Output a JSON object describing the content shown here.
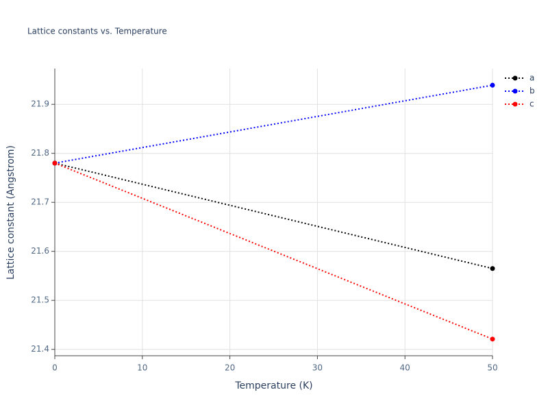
{
  "chart_data": {
    "type": "line",
    "title": "Lattice constants vs. Temperature",
    "x_label": "Temperature (K)",
    "y_label": "Lattice constant (Angstrom)",
    "x": [
      0,
      50
    ],
    "series": [
      {
        "name": "a",
        "color": "#000000",
        "values": [
          21.78,
          21.565
        ]
      },
      {
        "name": "b",
        "color": "#0000ff",
        "values": [
          21.78,
          21.939
        ]
      },
      {
        "name": "c",
        "color": "#ff0000",
        "values": [
          21.78,
          21.421
        ]
      }
    ],
    "xlim": [
      0,
      50
    ],
    "xticks": [
      0,
      10,
      20,
      30,
      40,
      50
    ],
    "ylim": [
      21.387,
      21.973
    ],
    "yticks": [
      {
        "value": 21.4,
        "label": "21.4"
      },
      {
        "value": 21.5,
        "label": "21.5"
      },
      {
        "value": 21.6,
        "label": "21.6"
      },
      {
        "value": 21.7,
        "label": "21.7"
      },
      {
        "value": 21.8,
        "label": "21.8"
      },
      {
        "value": 21.9,
        "label": "21.9"
      }
    ],
    "grid": true,
    "legend": "top-right"
  }
}
